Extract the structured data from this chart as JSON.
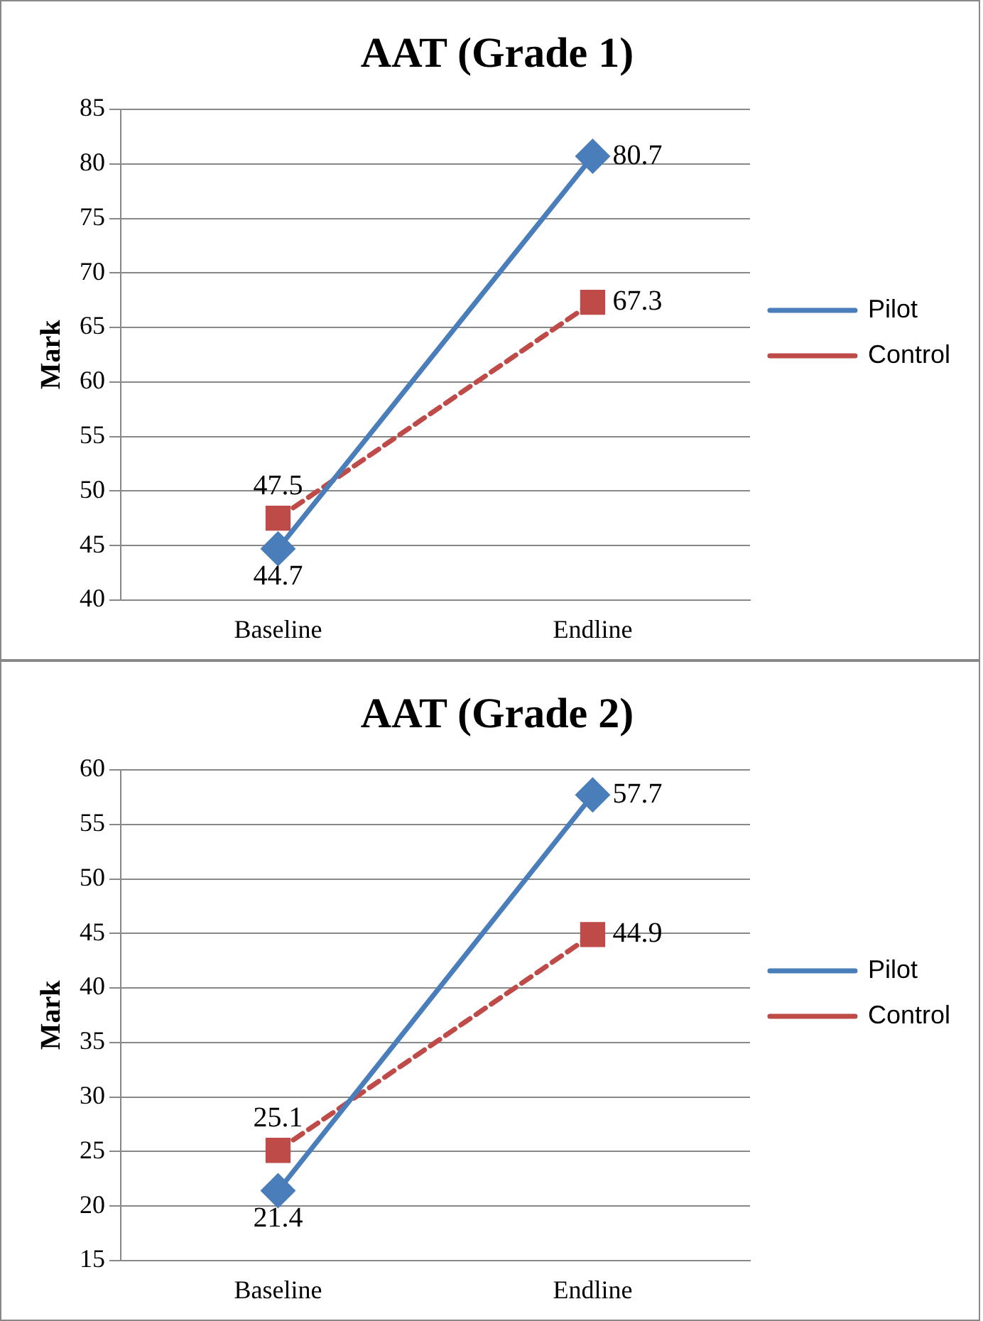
{
  "chart_data": [
    {
      "type": "line",
      "title": "AAT (Grade 1)",
      "ylabel": "Mark",
      "categories": [
        "Baseline",
        "Endline"
      ],
      "series": [
        {
          "name": "Pilot",
          "color": "#4a7ebb",
          "values": [
            44.7,
            80.7
          ],
          "marker": "diamond",
          "line_style": "solid"
        },
        {
          "name": "Control",
          "color": "#be4b48",
          "values": [
            47.5,
            67.3
          ],
          "marker": "square",
          "line_style": "dashed"
        }
      ],
      "ylim": [
        40,
        85
      ],
      "yticks": [
        40,
        45,
        50,
        55,
        60,
        65,
        70,
        75,
        80,
        85
      ],
      "grid": "y",
      "legend": "right",
      "data_labels": true
    },
    {
      "type": "line",
      "title": "AAT (Grade 2)",
      "ylabel": "Mark",
      "categories": [
        "Baseline",
        "Endline"
      ],
      "series": [
        {
          "name": "Pilot",
          "color": "#4a7ebb",
          "values": [
            21.4,
            57.7
          ],
          "marker": "diamond",
          "line_style": "solid"
        },
        {
          "name": "Control",
          "color": "#be4b48",
          "values": [
            25.1,
            44.9
          ],
          "marker": "square",
          "line_style": "dashed"
        }
      ],
      "ylim": [
        15,
        60
      ],
      "yticks": [
        15,
        20,
        25,
        30,
        35,
        40,
        45,
        50,
        55,
        60
      ],
      "grid": "y",
      "legend": "right",
      "data_labels": true
    }
  ]
}
